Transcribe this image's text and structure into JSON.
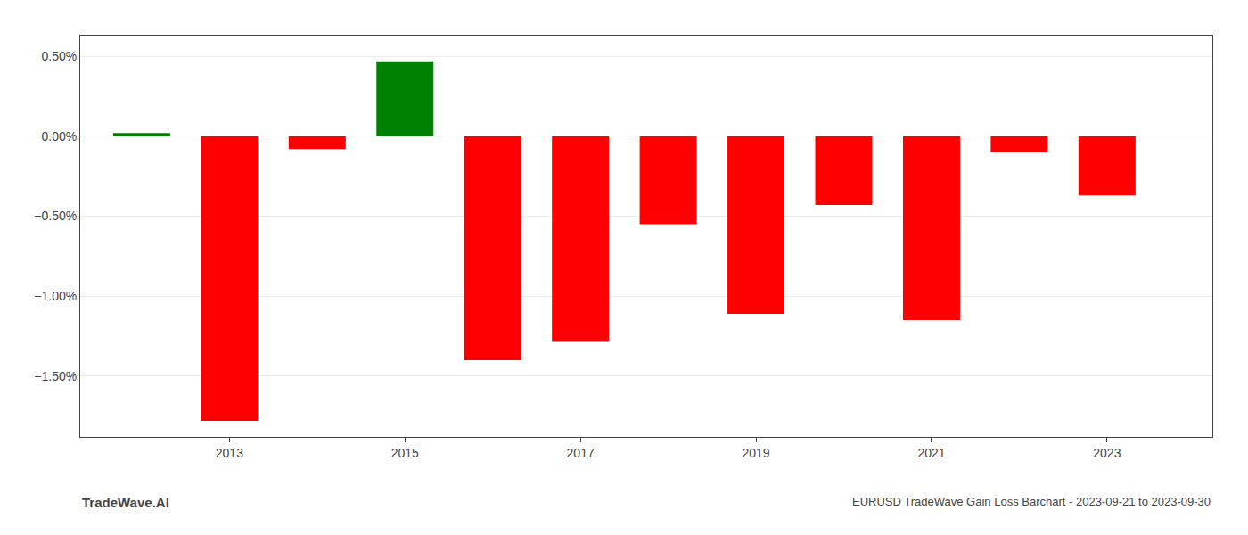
{
  "chart_data": {
    "type": "bar",
    "x": [
      2012,
      2013,
      2014,
      2015,
      2016,
      2017,
      2018,
      2019,
      2020,
      2021,
      2022,
      2023
    ],
    "values": [
      0.02,
      -1.78,
      -0.08,
      0.47,
      -1.4,
      -1.28,
      -0.55,
      -1.11,
      -0.43,
      -1.15,
      -0.1,
      -0.37
    ],
    "colors": [
      "#008000",
      "#ff0000",
      "#ff0000",
      "#008000",
      "#ff0000",
      "#ff0000",
      "#ff0000",
      "#ff0000",
      "#ff0000",
      "#ff0000",
      "#ff0000",
      "#ff0000"
    ],
    "xlim": [
      2011.3,
      2024.2
    ],
    "xticks": [
      2013,
      2015,
      2017,
      2019,
      2021,
      2023
    ],
    "ylim": [
      -1.88,
      0.63
    ],
    "yticks": [
      {
        "value": 0.5,
        "label": "0.50%"
      },
      {
        "value": 0.0,
        "label": "0.00%"
      },
      {
        "value": -0.5,
        "label": "−0.50%"
      },
      {
        "value": -1.0,
        "label": "−1.00%"
      },
      {
        "value": -1.5,
        "label": "−1.50%"
      }
    ],
    "grid": true,
    "annotations": [
      "TradeWave.AI",
      "EURUSD TradeWave Gain Loss Barchart - 2023-09-21 to 2023-09-30"
    ]
  }
}
